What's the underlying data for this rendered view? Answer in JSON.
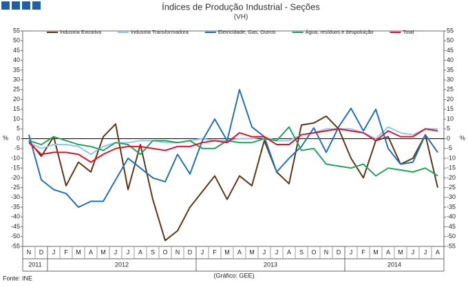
{
  "chart_data": {
    "type": "line",
    "title": "Índices de Produção Industrial - Seções",
    "subtitle": "(VH)",
    "y_label": "%",
    "y2_label": "%",
    "source": "Fonte: INE",
    "credit": "(Gráfico: GEE)",
    "categories": [
      "N",
      "D",
      "J",
      "F",
      "M",
      "A",
      "M",
      "J",
      "J",
      "A",
      "S",
      "O",
      "N",
      "D",
      "J",
      "F",
      "M",
      "A",
      "M",
      "J",
      "J",
      "A",
      "S",
      "O",
      "N",
      "D",
      "J",
      "F",
      "M",
      "A",
      "M",
      "J",
      "J",
      "A"
    ],
    "category_years": [
      "2011",
      "2011",
      "2012",
      "2012",
      "2012",
      "2012",
      "2012",
      "2012",
      "2012",
      "2012",
      "2012",
      "2012",
      "2012",
      "2012",
      "2013",
      "2013",
      "2013",
      "2013",
      "2013",
      "2013",
      "2013",
      "2013",
      "2013",
      "2013",
      "2013",
      "2013",
      "2014",
      "2014",
      "2014",
      "2014",
      "2014",
      "2014",
      "2014",
      "2014"
    ],
    "ylim": [
      -55,
      55
    ],
    "yticks": [
      -55,
      -50,
      -45,
      -40,
      -35,
      -30,
      -25,
      -20,
      -15,
      -10,
      -5,
      0,
      5,
      10,
      15,
      20,
      25,
      30,
      35,
      40,
      45,
      50,
      55
    ],
    "y2lim": [
      -55,
      55
    ],
    "y2ticks": [
      -55,
      -50,
      -45,
      -40,
      -35,
      -30,
      -25,
      -20,
      -15,
      -10,
      -5,
      0,
      5,
      10,
      15,
      20,
      25,
      30,
      35,
      40,
      45,
      50,
      55
    ],
    "series": [
      {
        "name": "Industria Extrativa",
        "color": "#5b3512",
        "values": [
          -1,
          -9,
          1,
          -24,
          -12,
          -17,
          1,
          7.5,
          -26,
          -3,
          -31,
          -52,
          -47,
          -35,
          -27,
          -19,
          -31,
          -19,
          -24,
          -1,
          -17,
          -23,
          7,
          8,
          11.5,
          5,
          -10,
          -20,
          -1,
          1,
          -13,
          -10,
          2,
          -25
        ]
      },
      {
        "name": "Industria Transformadora",
        "color": "#8fc8ee",
        "values": [
          -2,
          -5,
          -3,
          -3,
          -4,
          -8,
          -4,
          -2,
          -2,
          -1,
          -1,
          -2,
          -2,
          -1,
          0,
          -1,
          -1,
          0,
          0,
          1,
          -1,
          -1,
          2,
          3,
          5,
          5,
          5,
          3,
          0,
          6,
          3,
          2,
          5,
          5
        ]
      },
      {
        "name": "Eletricidade, Gas, Outros",
        "color": "#1f6fb5",
        "values": [
          2,
          -21,
          -26,
          -28,
          -35,
          -32,
          -32,
          -21,
          -10,
          -15,
          -20,
          -22,
          -8,
          -18,
          -1,
          10,
          -1,
          25,
          6,
          1,
          -17,
          -10,
          -4,
          5.5,
          -7,
          6,
          15.5,
          4,
          15,
          -5,
          -13,
          -12,
          2,
          -7
        ]
      },
      {
        "name": "Água, resíduos e despoluição",
        "color": "#1fa35a",
        "values": [
          -1,
          -3,
          1,
          -1,
          -3,
          -4,
          -6,
          -2,
          -3,
          -8,
          -1,
          -1,
          -2,
          -1,
          -5,
          -5,
          -1,
          -2,
          -2,
          0,
          -1,
          6,
          -6,
          -5,
          -13,
          -14,
          -15,
          -13,
          -19,
          -15,
          -16,
          -17,
          -15,
          -19
        ]
      },
      {
        "name": "Total",
        "color": "#e0102a",
        "values": [
          -2,
          -8,
          -7,
          -7,
          -8,
          -12,
          -8,
          -5,
          -4,
          -4,
          -5,
          -6,
          -4,
          -4,
          -2,
          -1,
          -2,
          3,
          1,
          1,
          -3,
          -3,
          2,
          3,
          4,
          5,
          4,
          3,
          -1,
          4,
          1,
          1,
          5,
          4
        ]
      }
    ],
    "grid": false
  }
}
